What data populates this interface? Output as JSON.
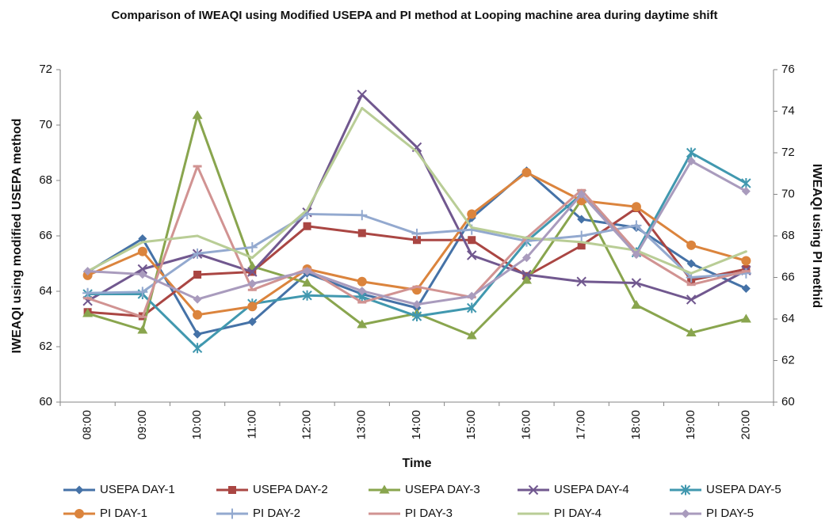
{
  "chart_data": {
    "type": "line",
    "title": "Comparison of IWEAQI using Modified USEPA and PI method at Looping machine area during daytime shift",
    "x_label": "Time",
    "y_label": "IWEAQI using modified USEPA method",
    "y2_label": "IWEAQI using PI methid",
    "categories": [
      "08:00",
      "09:00",
      "10:00",
      "11:00",
      "12:00",
      "13:00",
      "14:00",
      "15:00",
      "16:00",
      "17:00",
      "18:00",
      "19:00",
      "20:00"
    ],
    "ylim": [
      60,
      72
    ],
    "yticks": [
      60,
      62,
      64,
      66,
      68,
      70,
      72
    ],
    "y2lim": [
      60,
      76
    ],
    "y2ticks": [
      60,
      62,
      64,
      66,
      68,
      70,
      72,
      74,
      76
    ],
    "grid": false,
    "legend": "bottom",
    "series": [
      {
        "name": "USEPA DAY-1",
        "color": "#4572a7",
        "marker": "diamond",
        "values": [
          64.7,
          65.9,
          62.45,
          62.9,
          64.65,
          63.9,
          63.4,
          66.65,
          68.35,
          66.6,
          66.3,
          65.0,
          64.1
        ]
      },
      {
        "name": "USEPA DAY-2",
        "color": "#aa4643",
        "marker": "square",
        "values": [
          63.25,
          63.1,
          64.6,
          64.7,
          66.35,
          66.1,
          65.85,
          65.85,
          64.55,
          65.65,
          67.0,
          64.4,
          64.8
        ]
      },
      {
        "name": "USEPA DAY-3",
        "color": "#89a54e",
        "marker": "triangle",
        "values": [
          63.2,
          62.6,
          70.35,
          64.9,
          64.3,
          62.8,
          63.2,
          62.4,
          64.4,
          67.3,
          63.5,
          62.5,
          63.0
        ]
      },
      {
        "name": "USEPA DAY-4",
        "color": "#71588f",
        "marker": "x",
        "values": [
          63.65,
          64.8,
          65.35,
          64.7,
          66.85,
          71.1,
          69.2,
          65.3,
          64.6,
          64.35,
          64.3,
          63.7,
          64.75
        ]
      },
      {
        "name": "USEPA DAY-5",
        "color": "#4198af",
        "marker": "star",
        "values": [
          63.9,
          63.9,
          61.95,
          63.55,
          63.85,
          63.8,
          63.1,
          63.4,
          65.8,
          67.5,
          65.4,
          69.0,
          67.9
        ]
      },
      {
        "name": "PI DAY-1",
        "color": "#db843d",
        "marker": "circle",
        "axis": "y2",
        "values": [
          66.1,
          67.25,
          64.2,
          64.6,
          66.4,
          65.8,
          65.4,
          69.05,
          71.05,
          69.7,
          69.4,
          67.55,
          66.8
        ]
      },
      {
        "name": "PI DAY-2",
        "color": "#93a9cf",
        "marker": "plus",
        "axis": "y2",
        "values": [
          65.25,
          65.3,
          67.15,
          67.45,
          69.05,
          69.0,
          68.1,
          68.3,
          67.75,
          68.0,
          68.5,
          66.0,
          66.2
        ]
      },
      {
        "name": "PI DAY-3",
        "color": "#d19392",
        "marker": "dash",
        "axis": "y2",
        "values": [
          65.0,
          64.1,
          71.35,
          65.4,
          66.4,
          64.8,
          65.55,
          65.05,
          67.9,
          70.2,
          67.25,
          65.65,
          66.3
        ]
      },
      {
        "name": "PI DAY-4",
        "color": "#b9cd96",
        "marker": "none",
        "axis": "y2",
        "values": [
          66.3,
          67.7,
          68.0,
          66.95,
          69.25,
          74.15,
          72.05,
          68.4,
          67.9,
          67.7,
          67.3,
          66.2,
          67.25
        ]
      },
      {
        "name": "PI DAY-5",
        "color": "#a99bbd",
        "marker": "diamond",
        "axis": "y2",
        "values": [
          66.3,
          66.15,
          64.95,
          65.7,
          66.3,
          65.35,
          64.7,
          65.1,
          66.95,
          70.0,
          67.1,
          71.6,
          70.15
        ]
      }
    ]
  }
}
